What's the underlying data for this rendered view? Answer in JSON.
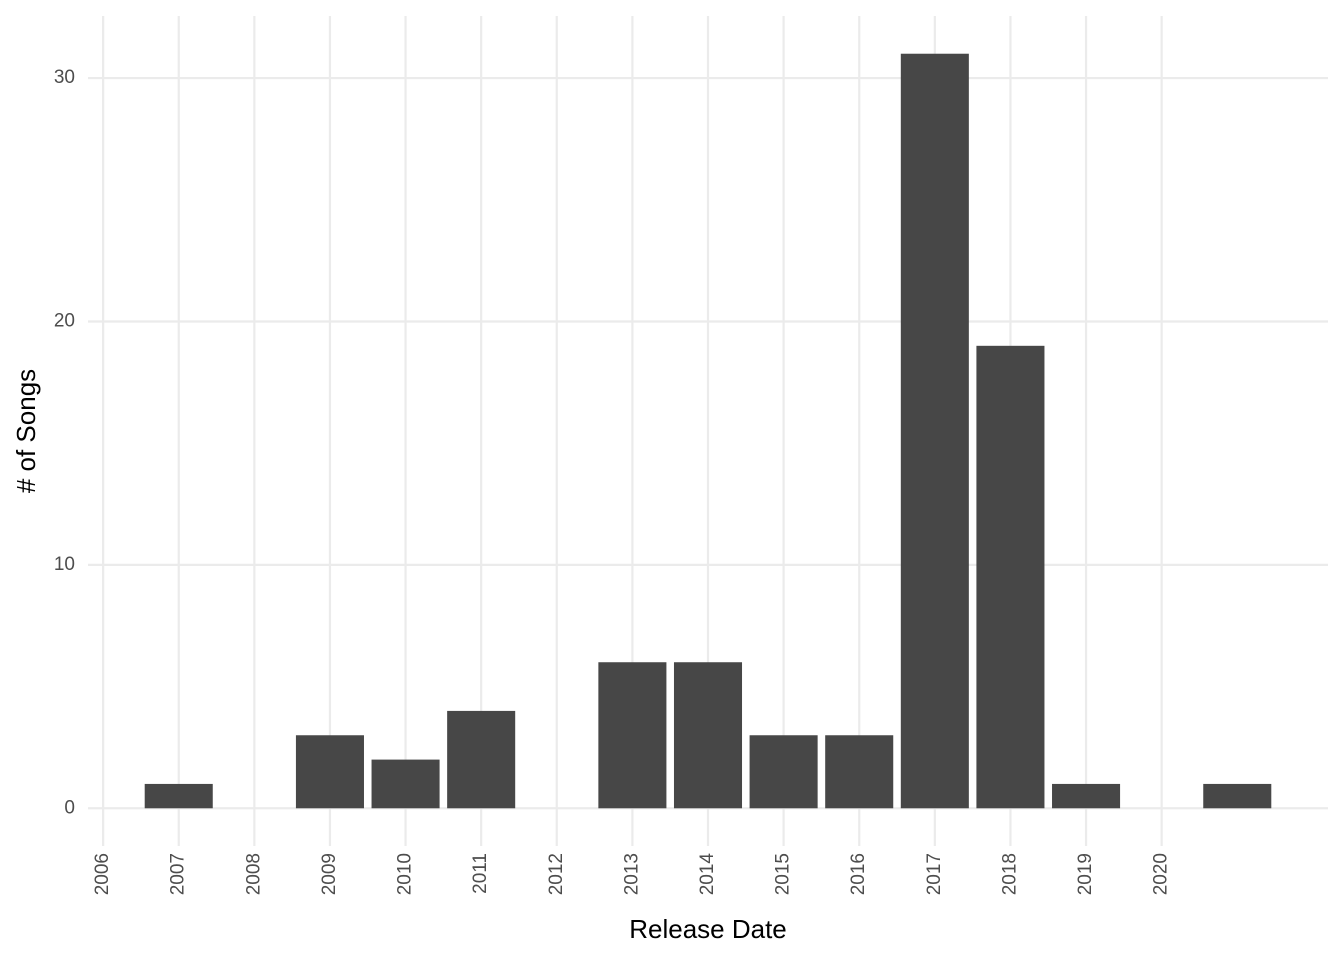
{
  "chart_data": {
    "type": "bar",
    "x_label": "Release Date",
    "y_label": "# of Songs",
    "x": [
      2007,
      2008,
      2009,
      2010,
      2011,
      2012,
      2013,
      2014,
      2015,
      2016,
      2017,
      2018,
      2019,
      2020,
      2021
    ],
    "values": [
      1,
      0,
      3,
      2,
      4,
      0,
      6,
      6,
      3,
      3,
      31,
      19,
      1,
      0,
      1
    ],
    "color": "#474747",
    "bar_width": 0.9,
    "xlim": [
      2005.8,
      2022.2
    ],
    "xticks": [
      2006,
      2007,
      2008,
      2009,
      2010,
      2011,
      2012,
      2013,
      2014,
      2015,
      2016,
      2017,
      2018,
      2019,
      2020
    ],
    "ylim": [
      -1.55,
      32.55
    ],
    "yticks": [
      0,
      10,
      20,
      30
    ],
    "grid": true
  }
}
